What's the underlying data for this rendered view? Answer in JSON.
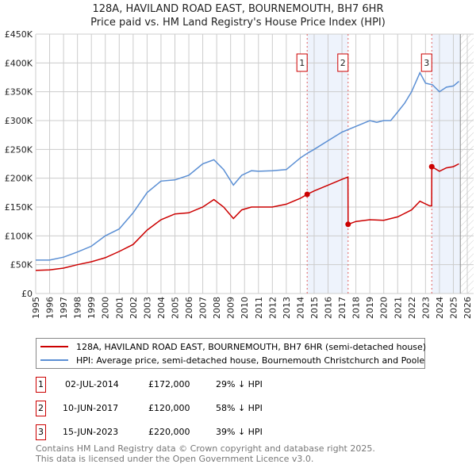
{
  "chart_data": {
    "type": "line",
    "title": "128A, HAVILAND ROAD EAST, BOURNEMOUTH, BH7 6HR",
    "subtitle": "Price paid vs. HM Land Registry's House Price Index (HPI)",
    "xlim": [
      1995,
      2026
    ],
    "ylim": [
      0,
      450000
    ],
    "x_ticks": [
      "1995",
      "1996",
      "1997",
      "1998",
      "1999",
      "2000",
      "2001",
      "2002",
      "2003",
      "2004",
      "2005",
      "2006",
      "2007",
      "2008",
      "2009",
      "2010",
      "2011",
      "2012",
      "2013",
      "2014",
      "2015",
      "2016",
      "2017",
      "2018",
      "2019",
      "2020",
      "2021",
      "2022",
      "2023",
      "2024",
      "2025",
      "2026"
    ],
    "y_ticks": [
      {
        "v": 0,
        "label": "£0"
      },
      {
        "v": 50000,
        "label": "£50K"
      },
      {
        "v": 100000,
        "label": "£100K"
      },
      {
        "v": 150000,
        "label": "£150K"
      },
      {
        "v": 200000,
        "label": "£200K"
      },
      {
        "v": 250000,
        "label": "£250K"
      },
      {
        "v": 300000,
        "label": "£300K"
      },
      {
        "v": 350000,
        "label": "£350K"
      },
      {
        "v": 400000,
        "label": "£400K"
      },
      {
        "v": 450000,
        "label": "£450K"
      }
    ],
    "grid": true,
    "series": [
      {
        "name": "128A, HAVILAND ROAD EAST, BOURNEMOUTH, BH7 6HR (semi-detached house)",
        "color": "#cc0000",
        "x": [
          1995,
          1996,
          1997,
          1998,
          1999,
          2000,
          2001,
          2002,
          2003,
          2004,
          2005,
          2006,
          2007,
          2007.8,
          2008.5,
          2009.2,
          2009.8,
          2010.5,
          2012,
          2013,
          2014,
          2014.5,
          2015,
          2016,
          2017,
          2017.43,
          2017.44,
          2018,
          2019,
          2020,
          2021,
          2022,
          2022.6,
          2023.3,
          2023.44,
          2023.45,
          2024,
          2024.5,
          2025,
          2025.4
        ],
        "y": [
          40000,
          41000,
          44000,
          50000,
          55000,
          62000,
          73000,
          85000,
          110000,
          128000,
          138000,
          140000,
          150000,
          163000,
          150000,
          130000,
          145000,
          150000,
          150000,
          155000,
          165000,
          172000,
          178000,
          188000,
          198000,
          202000,
          120000,
          125000,
          128000,
          127000,
          133000,
          145000,
          160000,
          152000,
          152000,
          220000,
          212000,
          218000,
          220000,
          225000
        ]
      },
      {
        "name": "HPI: Average price, semi-detached house, Bournemouth Christchurch and Poole",
        "color": "#5b8fd4",
        "x": [
          1995,
          1996,
          1997,
          1998,
          1999,
          2000,
          2001,
          2002,
          2003,
          2004,
          2005,
          2006,
          2007,
          2007.8,
          2008.5,
          2009.2,
          2009.8,
          2010.5,
          2011,
          2012,
          2013,
          2014,
          2014.5,
          2015,
          2016,
          2017,
          2017.5,
          2018,
          2019,
          2019.5,
          2020,
          2020.5,
          2021,
          2021.5,
          2022,
          2022.6,
          2023,
          2023.5,
          2024,
          2024.5,
          2025,
          2025.4
        ],
        "y": [
          58000,
          58000,
          63000,
          72000,
          82000,
          100000,
          112000,
          140000,
          175000,
          195000,
          197000,
          205000,
          225000,
          232000,
          215000,
          188000,
          205000,
          213000,
          212000,
          213000,
          215000,
          235000,
          243000,
          250000,
          265000,
          280000,
          285000,
          290000,
          300000,
          297000,
          300000,
          300000,
          315000,
          330000,
          350000,
          383000,
          365000,
          362000,
          350000,
          358000,
          360000,
          368000
        ]
      }
    ],
    "sales": [
      {
        "n": "1",
        "x": 2014.5,
        "y": 172000,
        "date": "02-JUL-2014",
        "price": "£172,000",
        "delta": "29% ↓ HPI"
      },
      {
        "n": "2",
        "x": 2017.44,
        "y": 120000,
        "date": "10-JUN-2017",
        "price": "£120,000",
        "delta": "58% ↓ HPI"
      },
      {
        "n": "3",
        "x": 2023.45,
        "y": 220000,
        "date": "15-JUN-2023",
        "price": "£220,000",
        "delta": "39% ↓ HPI"
      }
    ],
    "data_end": 2025.5,
    "legend_position": "bottom"
  },
  "footer": [
    "Contains HM Land Registry data © Crown copyright and database right 2025.",
    "This data is licensed under the Open Government Licence v3.0."
  ]
}
